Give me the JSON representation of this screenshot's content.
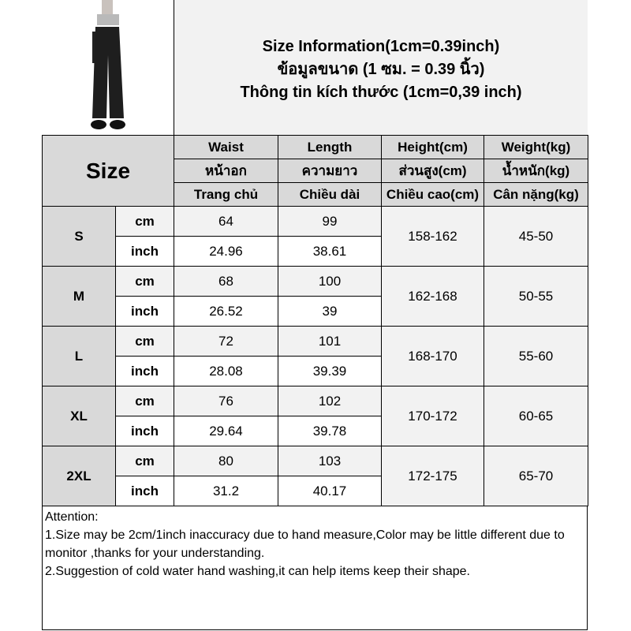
{
  "title_lines": [
    "Size Information(1cm=0.39inch)",
    "ข้อมูลขนาด (1 ซม. = 0.39 นิ้ว)",
    "Thông tin kích thước (1cm=0,39 inch)"
  ],
  "size_header": "Size",
  "columns": [
    [
      "Waist",
      "หน้าอก",
      "Trang chủ"
    ],
    [
      "Length",
      "ความยาว",
      "Chiều dài"
    ],
    [
      "Height(cm)",
      "ส่วนสูง(cm)",
      "Chiều cao(cm)"
    ],
    [
      "Weight(kg)",
      "น้ำหนัก(kg)",
      "Cân nặng(kg)"
    ]
  ],
  "units": {
    "cm": "cm",
    "inch": "inch"
  },
  "rows": [
    {
      "size": "S",
      "cm": [
        "64",
        "99"
      ],
      "inch": [
        "24.96",
        "38.61"
      ],
      "height": "158-162",
      "weight": "45-50"
    },
    {
      "size": "M",
      "cm": [
        "68",
        "100"
      ],
      "inch": [
        "26.52",
        "39"
      ],
      "height": "162-168",
      "weight": "50-55"
    },
    {
      "size": "L",
      "cm": [
        "72",
        "101"
      ],
      "inch": [
        "28.08",
        "39.39"
      ],
      "height": "168-170",
      "weight": "55-60"
    },
    {
      "size": "XL",
      "cm": [
        "76",
        "102"
      ],
      "inch": [
        "29.64",
        "39.78"
      ],
      "height": "170-172",
      "weight": "60-65"
    },
    {
      "size": "2XL",
      "cm": [
        "80",
        "103"
      ],
      "inch": [
        "31.2",
        "40.17"
      ],
      "height": "172-175",
      "weight": "65-70"
    }
  ],
  "attention": {
    "heading": "Attention:",
    "line1": "1.Size may be 2cm/1inch inaccuracy due to hand measure,Color may be little different due to monitor ,thanks for your understanding.",
    "line2": "2.Suggestion of cold water hand washing,it can help items keep their shape."
  },
  "colors": {
    "header_bg": "#d9d9d9",
    "light_bg": "#f2f2f2",
    "border": "#000000"
  }
}
